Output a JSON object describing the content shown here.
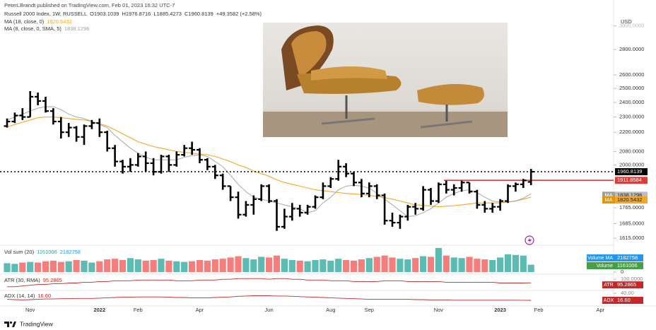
{
  "header": {
    "byline": "PeterLBrandt published on TradingView.com, Feb 01, 2023 16:32 UTC-7",
    "footer": "TradingView"
  },
  "chart_data": {
    "type": "ohlc",
    "title": "Russell 2000 Index, 1W, RUSSELL",
    "ohlc_labels": [
      "O",
      "H",
      "L",
      "C"
    ],
    "change_label": "+49.3582 (+2.58%)",
    "currency": "USD",
    "log_scale": true,
    "ylim": [
      1589,
      3073
    ],
    "yticks": [
      {
        "value": 3000,
        "label": "3000.0000"
      },
      {
        "value": 2800,
        "label": "2800.0000"
      },
      {
        "value": 2600,
        "label": "2600.0000"
      },
      {
        "value": 2500,
        "label": "2500.0000"
      },
      {
        "value": 2400,
        "label": "2400.0000"
      },
      {
        "value": 2300,
        "label": "2300.0000"
      },
      {
        "value": 2200,
        "label": "2200.0000"
      },
      {
        "value": 2080,
        "label": "2080.0000"
      },
      {
        "value": 2000,
        "label": "2000.0000"
      },
      {
        "value": 1765,
        "label": "1765.0000"
      },
      {
        "value": 1685,
        "label": "1685.0000"
      },
      {
        "value": 1615,
        "label": "1615.0000"
      }
    ],
    "color": "#000000",
    "categories": [
      null,
      null,
      null,
      "Nov",
      null,
      null,
      null,
      null,
      null,
      null,
      null,
      null,
      "2022",
      null,
      null,
      null,
      null,
      "Feb",
      null,
      null,
      null,
      null,
      null,
      null,
      null,
      "Apr",
      null,
      null,
      null,
      null,
      null,
      null,
      null,
      null,
      "Jun",
      null,
      null,
      null,
      null,
      null,
      null,
      null,
      "Aug",
      null,
      null,
      null,
      null,
      "Sep",
      null,
      null,
      null,
      null,
      null,
      null,
      null,
      null,
      "Nov",
      null,
      null,
      null,
      null,
      null,
      null,
      null,
      "2023",
      null,
      null,
      null,
      null,
      "Feb",
      null,
      null,
      null,
      null,
      null,
      null,
      null,
      "Apr",
      null,
      null
    ],
    "open": [
      2240,
      2270,
      2310,
      2300,
      2440,
      2410,
      2340,
      2270,
      2200,
      2230,
      2170,
      2240,
      2260,
      2200,
      2100,
      2020,
      1990,
      2000,
      2050,
      2010,
      1960,
      2050,
      2000,
      2060,
      2100,
      2090,
      2030,
      1990,
      1940,
      1880,
      1820,
      1730,
      1780,
      1810,
      1880,
      1800,
      1670,
      1720,
      1760,
      1740,
      1770,
      1820,
      1880,
      1920,
      1990,
      1950,
      1900,
      1840,
      1880,
      1830,
      1700,
      1690,
      1720,
      1770,
      1760,
      1860,
      1800,
      1890,
      1860,
      1870,
      1900,
      1850,
      1780,
      1760,
      1770,
      1800,
      1880,
      1890,
      1903.1039,
      null,
      null,
      null,
      null,
      null,
      null,
      null,
      null,
      null,
      null,
      null
    ],
    "high": [
      2290,
      2330,
      2360,
      2480,
      2470,
      2440,
      2360,
      2300,
      2260,
      2240,
      2250,
      2280,
      2290,
      2210,
      2120,
      2030,
      2040,
      2070,
      2080,
      2040,
      2060,
      2060,
      2080,
      2120,
      2140,
      2100,
      2040,
      2000,
      1950,
      1880,
      1850,
      1800,
      1830,
      1890,
      1890,
      1810,
      1760,
      1790,
      1780,
      1780,
      1830,
      1900,
      1930,
      2030,
      2010,
      1960,
      1920,
      1900,
      1890,
      1840,
      1740,
      1730,
      1780,
      1790,
      1880,
      1870,
      1900,
      1910,
      1890,
      1910,
      1900,
      1860,
      1800,
      1790,
      1810,
      1890,
      1900,
      1920,
      1976.8716,
      null,
      null,
      null,
      null,
      null,
      null,
      null,
      null,
      null,
      null,
      null
    ],
    "low": [
      2230,
      2260,
      2280,
      2300,
      2380,
      2330,
      2250,
      2160,
      2170,
      2140,
      2120,
      2220,
      2170,
      2080,
      1990,
      1950,
      1960,
      1990,
      1960,
      1940,
      1950,
      1960,
      1990,
      2050,
      2060,
      2010,
      1970,
      1920,
      1860,
      1800,
      1710,
      1720,
      1730,
      1800,
      1790,
      1650,
      1660,
      1700,
      1720,
      1730,
      1760,
      1810,
      1870,
      1910,
      1930,
      1880,
      1820,
      1820,
      1810,
      1680,
      1670,
      1660,
      1700,
      1730,
      1750,
      1780,
      1790,
      1840,
      1830,
      1850,
      1840,
      1760,
      1740,
      1740,
      1750,
      1790,
      1850,
      1870,
      1885.4273,
      null,
      null,
      null,
      null,
      null,
      null,
      null,
      null,
      null,
      null,
      null
    ],
    "close": [
      2270,
      2310,
      2300,
      2440,
      2410,
      2340,
      2270,
      2200,
      2230,
      2170,
      2240,
      2260,
      2200,
      2100,
      2020,
      1990,
      2000,
      2050,
      2010,
      1960,
      2050,
      2000,
      2060,
      2100,
      2090,
      2030,
      1990,
      1940,
      1880,
      1820,
      1730,
      1780,
      1810,
      1880,
      1800,
      1670,
      1720,
      1760,
      1740,
      1770,
      1820,
      1880,
      1920,
      1990,
      1950,
      1900,
      1840,
      1880,
      1830,
      1700,
      1690,
      1720,
      1770,
      1760,
      1860,
      1800,
      1890,
      1860,
      1870,
      1900,
      1850,
      1780,
      1760,
      1770,
      1800,
      1880,
      1890,
      1911.4557,
      1960.8139,
      null,
      null,
      null,
      null,
      null,
      null,
      null,
      null,
      null,
      null,
      null
    ],
    "level": {
      "value": 1911.8584,
      "color": "#e53935"
    },
    "overlays": [
      {
        "name": "MA (18, close, 0)",
        "short": "MA",
        "color": "#f5a623",
        "values": [
          2235,
          2250,
          2265,
          2280,
          2295,
          2300,
          2300,
          2295,
          2290,
          2285,
          2280,
          2270,
          2255,
          2240,
          2215,
          2190,
          2165,
          2140,
          2125,
          2110,
          2100,
          2090,
          2080,
          2075,
          2070,
          2065,
          2060,
          2050,
          2035,
          2020,
          2000,
          1985,
          1965,
          1950,
          1935,
          1915,
          1900,
          1890,
          1880,
          1870,
          1860,
          1855,
          1850,
          1845,
          1840,
          1837,
          1835,
          1830,
          1825,
          1818,
          1810,
          1800,
          1790,
          1780,
          1777,
          1774,
          1770,
          1773,
          1776,
          1780,
          1785,
          1790,
          1790,
          1790,
          1790,
          1795,
          1800,
          1810,
          1820.5432,
          null,
          null,
          null,
          null,
          null,
          null,
          null,
          null,
          null,
          null,
          null
        ]
      },
      {
        "name": "MA (8, close, 0, SMA, 5)",
        "short": "MA",
        "color": "#9e9e9e",
        "values": [
          2280,
          2300,
          2320,
          2340,
          2360,
          2370,
          2370,
          2350,
          2320,
          2300,
          2290,
          2270,
          2250,
          2230,
          2180,
          2140,
          2100,
          2070,
          2045,
          2030,
          2030,
          2030,
          2030,
          2045,
          2055,
          2060,
          2050,
          2020,
          1990,
          1940,
          1890,
          1850,
          1820,
          1810,
          1800,
          1790,
          1780,
          1770,
          1760,
          1740,
          1750,
          1790,
          1820,
          1860,
          1880,
          1885,
          1880,
          1870,
          1840,
          1810,
          1780,
          1750,
          1720,
          1725,
          1740,
          1760,
          1790,
          1820,
          1840,
          1855,
          1860,
          1845,
          1820,
          1800,
          1795,
          1795,
          1800,
          1815,
          1838.1296,
          null,
          null,
          null,
          null,
          null,
          null,
          null,
          null,
          null,
          null,
          null
        ]
      }
    ],
    "volume": {
      "title": "Vol sum (20)",
      "name": "Volume",
      "ma_name": "Volume MA",
      "ma_value": 2182758,
      "up_color": "#26a69a",
      "down_color": "#ef5350",
      "ma_color": "#2196f3",
      "ylim": [
        0,
        3900000
      ],
      "yticks": [
        0
      ],
      "values": [
        1400000,
        1300000,
        1500000,
        1600000,
        1500000,
        1700000,
        1800000,
        1600000,
        1700000,
        1900000,
        1800000,
        1500000,
        1700000,
        2000000,
        2100000,
        1900000,
        2200000,
        2000000,
        1800000,
        1900000,
        2100000,
        1800000,
        1700000,
        1600000,
        1700000,
        1900000,
        1800000,
        2000000,
        2100000,
        2300000,
        2500000,
        2200000,
        2000000,
        2400000,
        2300000,
        2600000,
        2100000,
        1900000,
        1800000,
        1700000,
        1900000,
        2000000,
        1800000,
        2100000,
        1900000,
        1800000,
        2000000,
        2200000,
        2400000,
        2600000,
        2300000,
        2100000,
        2000000,
        2200000,
        2500000,
        2400000,
        3800000,
        2600000,
        2300000,
        2200000,
        2400000,
        2100000,
        2000000,
        1900000,
        2300000,
        2800000,
        2700000,
        2600000,
        1161006,
        null,
        null,
        null,
        null,
        null,
        null,
        null,
        null,
        null,
        null,
        null
      ]
    },
    "indicators": [
      {
        "title": "ATR (30, RMA)",
        "short": "ATR",
        "color": "#c62828",
        "ylim": [
          86,
          104
        ],
        "yticks": [
          {
            "value": 100,
            "label": "100.0000"
          }
        ],
        "values": [
          90,
          90,
          91,
          92,
          93,
          93,
          94,
          94,
          95,
          95,
          96,
          96,
          97,
          97,
          98,
          98,
          98,
          99,
          99,
          99,
          99,
          99,
          98,
          98,
          98,
          99,
          99,
          99,
          100,
          100,
          101,
          101,
          101,
          101,
          100,
          101,
          101,
          100,
          100,
          99,
          99,
          99,
          98,
          98,
          98,
          97,
          97,
          97,
          97,
          98,
          98,
          98,
          97,
          97,
          97,
          97,
          97,
          96,
          96,
          96,
          96,
          96,
          96,
          96,
          95,
          95,
          95,
          95,
          95.2865,
          null,
          null,
          null,
          null,
          null,
          null,
          null,
          null,
          null,
          null,
          null
        ]
      },
      {
        "title": "ADX (14, 14)",
        "short": "ADX",
        "color": "#c62828",
        "ylim": [
          0,
          45
        ],
        "yticks": [
          {
            "value": 40,
            "label": "40.00"
          }
        ],
        "values": [
          20,
          19,
          18,
          19,
          20,
          21,
          21,
          22,
          22,
          23,
          23,
          23,
          24,
          25,
          26,
          27,
          27,
          28,
          28,
          28,
          28,
          27,
          26,
          26,
          25,
          25,
          25,
          26,
          27,
          28,
          30,
          31,
          32,
          32,
          32,
          31,
          31,
          30,
          29,
          28,
          27,
          26,
          25,
          24,
          23,
          22,
          21,
          20,
          20,
          20,
          20,
          20,
          20,
          19,
          19,
          18,
          18,
          18,
          17,
          17,
          17,
          17,
          17,
          17,
          17,
          17,
          17,
          16.8,
          16.6,
          null,
          null,
          null,
          null,
          null,
          null,
          null,
          null,
          null,
          null,
          null
        ],
        "value_labels": [
          null,
          null,
          null,
          null,
          null,
          null,
          null,
          null,
          null,
          null,
          null,
          null,
          null,
          null,
          null,
          null,
          null,
          null,
          null,
          null,
          null,
          null,
          null,
          null,
          null,
          null,
          null,
          null,
          null,
          null,
          null,
          null,
          null,
          null,
          null,
          null,
          null,
          null,
          null,
          null,
          null,
          null,
          null,
          null,
          null,
          null,
          null,
          null,
          null,
          null,
          null,
          null,
          null,
          null,
          null,
          null,
          null,
          null,
          null,
          null,
          null,
          null,
          null,
          null,
          null,
          null,
          null,
          null,
          "16.60",
          null,
          null,
          null,
          null,
          null,
          null,
          null,
          null,
          null,
          null,
          null
        ]
      }
    ]
  }
}
